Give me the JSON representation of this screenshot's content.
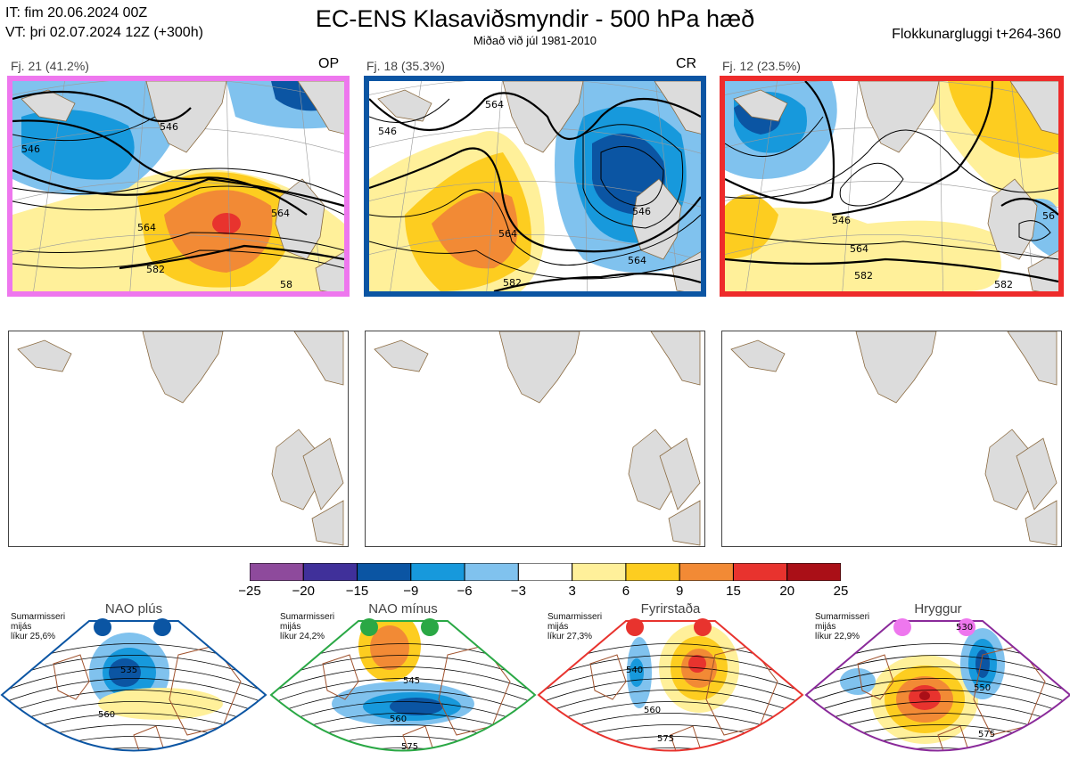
{
  "header": {
    "it_line": "IT: fim 20.06.2024 00Z",
    "vt_line": "VT: þri 02.07.2024 12Z  (+300h)",
    "title": "EC-ENS Klasaviðsmyndir - 500 hPa hæð",
    "subtitle": "Miðað við júl 1981-2010",
    "window": "Flokkunargluggi t+264-360"
  },
  "clusters": [
    {
      "label": "Fj. 21 (41.2%)",
      "tag": "OP",
      "color": "#ee77ee",
      "contours": [
        "546",
        "546",
        "564",
        "564",
        "582",
        "58"
      ]
    },
    {
      "label": "Fj. 18 (35.3%)",
      "tag": "CR",
      "color": "#0b55a3",
      "contours": [
        "546",
        "564",
        "546",
        "564",
        "564",
        "582"
      ]
    },
    {
      "label": "Fj. 12 (23.5%)",
      "tag": "",
      "color": "#ee2b2b",
      "contours": [
        "546",
        "564",
        "582",
        "582",
        "56"
      ]
    }
  ],
  "colorbar": {
    "ticks": [
      "−25",
      "−20",
      "−15",
      "−9",
      "−6",
      "−3",
      "3",
      "6",
      "9",
      "15",
      "20",
      "25"
    ],
    "colors": [
      "#8e4a9c",
      "#40309a",
      "#0b55a3",
      "#1799dc",
      "#80c2ee",
      "#ffffff",
      "#fff09a",
      "#fdcd20",
      "#f28a35",
      "#e8332e",
      "#aa0f17"
    ]
  },
  "regimes": [
    {
      "title": "NAO plús",
      "meta": [
        "Sumarmisseri",
        "mijás",
        "líkur 25,6%"
      ],
      "color": "#0b55a3",
      "contours": [
        "535",
        "560"
      ]
    },
    {
      "title": "NAO mínus",
      "meta": [
        "Sumarmisseri",
        "mijás",
        "líkur 24,2%"
      ],
      "color": "#2aa845",
      "contours": [
        "545",
        "560",
        "575"
      ]
    },
    {
      "title": "Fyrirstaða",
      "meta": [
        "Sumarmisseri",
        "mijás",
        "líkur 27,3%"
      ],
      "color": "#e8332e",
      "contours": [
        "540",
        "560",
        "575"
      ]
    },
    {
      "title": "Hryggur",
      "meta": [
        "Sumarmisseri",
        "mijás",
        "líkur 22,9%"
      ],
      "color": "#ee77ee",
      "frame_color": "#8a2a9a",
      "contours": [
        "530",
        "550",
        "575"
      ]
    }
  ]
}
